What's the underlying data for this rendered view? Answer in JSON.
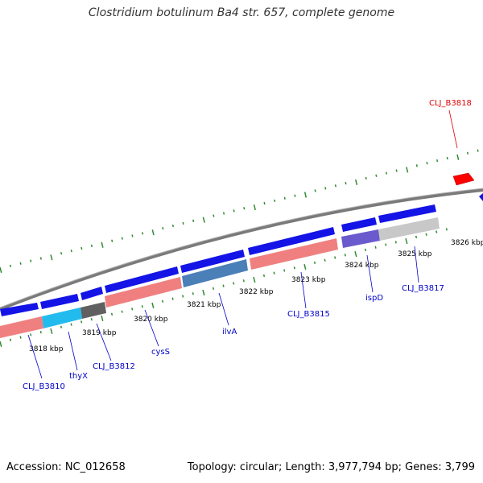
{
  "title": "Clostridium botulinum Ba4 str. 657, complete genome",
  "accession_text": "Accession: NC_012658",
  "summary_text": "Topology: circular; Length: 3,977,794 bp; Genes: 3,799",
  "colors": {
    "forward_gene": "#1a1adf",
    "reverse_gene": "#ff0000",
    "backbone": "#808080",
    "tick": "#2e8b2e",
    "label": "#0000c8",
    "label_highlight": "#e00000"
  },
  "scale_ticks": [
    {
      "label": "3818 kbp"
    },
    {
      "label": "3819 kbp"
    },
    {
      "label": "3820 kbp"
    },
    {
      "label": "3821 kbp"
    },
    {
      "label": "3822 kbp"
    },
    {
      "label": "3823 kbp"
    },
    {
      "label": "3824 kbp"
    },
    {
      "label": "3825 kbp"
    },
    {
      "label": "3826 kbp"
    }
  ],
  "gene_labels": [
    {
      "text": "CLJ_B3810"
    },
    {
      "text": "thyX"
    },
    {
      "text": "CLJ_B3812"
    },
    {
      "text": "cysS"
    },
    {
      "text": "ilvA"
    },
    {
      "text": "CLJ_B3815"
    },
    {
      "text": "ispD"
    },
    {
      "text": "CLJ_B3817"
    },
    {
      "text": "CLJ_B3818"
    }
  ]
}
